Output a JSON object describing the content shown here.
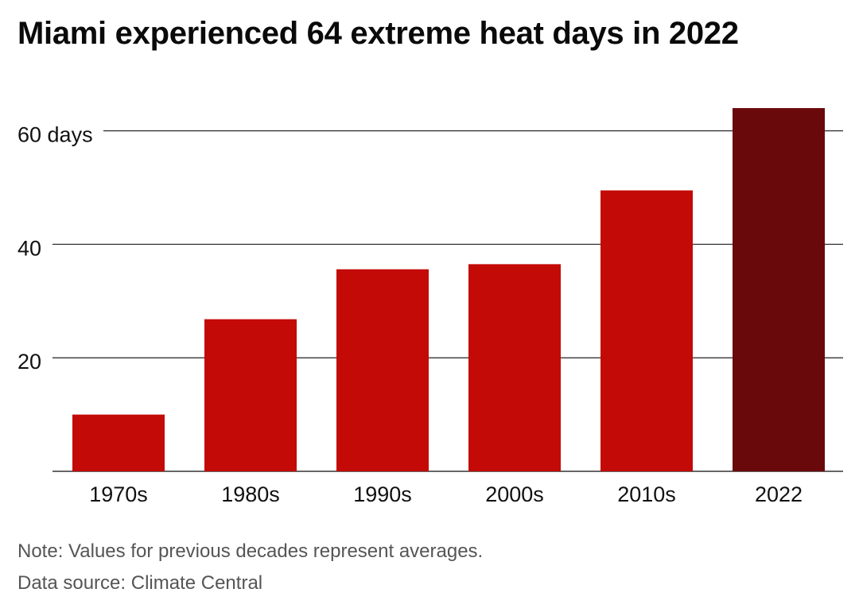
{
  "chart_data": {
    "type": "bar",
    "title": "Miami experienced 64 extreme heat days in 2022",
    "categories": [
      "1970s",
      "1980s",
      "1990s",
      "2000s",
      "2010s",
      "2022"
    ],
    "values": [
      10,
      26.8,
      35.6,
      36.5,
      49.5,
      64
    ],
    "y_ticks": [
      {
        "value": 20,
        "label": "20"
      },
      {
        "value": 40,
        "label": "40"
      },
      {
        "value": 60,
        "label": "60 days"
      }
    ],
    "ylim": [
      0,
      64
    ],
    "grid": true,
    "colors": {
      "decade_bar": "#c30a07",
      "highlight_bar": "#6a090b",
      "gridline": "#333333"
    },
    "highlight_category": "2022"
  },
  "footer": {
    "note": "Note: Values for previous decades represent averages.",
    "source": "Data source: Climate Central"
  }
}
